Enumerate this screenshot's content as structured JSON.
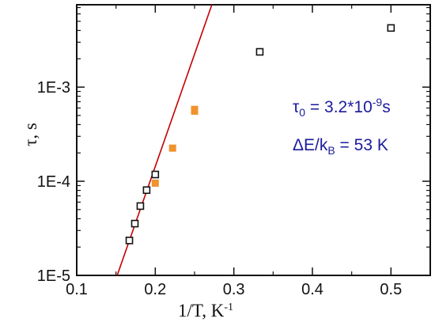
{
  "chart_data": {
    "type": "scatter",
    "title": "",
    "xlabel": {
      "base": "1/T, K",
      "superscript": "-1"
    },
    "ylabel": "τ, s",
    "xlim": [
      0.1,
      0.55
    ],
    "ylim": [
      1e-05,
      0.0075
    ],
    "y_scale": "log",
    "grid": false,
    "x_ticks": [
      {
        "value": 0.1,
        "label": "0.1"
      },
      {
        "value": 0.2,
        "label": "0.2"
      },
      {
        "value": 0.3,
        "label": "0.3"
      },
      {
        "value": 0.4,
        "label": "0.4"
      },
      {
        "value": 0.5,
        "label": "0.5"
      }
    ],
    "y_ticks": [
      {
        "value": 1e-05,
        "label": "1E-5"
      },
      {
        "value": 0.0001,
        "label": "1E-4"
      },
      {
        "value": 0.001,
        "label": "1E-3"
      }
    ],
    "series": [
      {
        "marker": "square-open",
        "color": "#111111",
        "points": [
          {
            "x": 0.167,
            "y": 2.35e-05
          },
          {
            "x": 0.174,
            "y": 3.55e-05
          },
          {
            "x": 0.181,
            "y": 5.45e-05
          },
          {
            "x": 0.189,
            "y": 8.05e-05
          },
          {
            "x": 0.2,
            "y": 0.000118
          },
          {
            "x": 0.333,
            "y": 0.00237
          },
          {
            "x": 0.5,
            "y": 0.00425
          }
        ]
      },
      {
        "marker": "square-filled",
        "color": "#f0922e",
        "points": [
          {
            "x": 0.2,
            "y": 9.55e-05
          },
          {
            "x": 0.222,
            "y": 0.000225
          },
          {
            "x": 0.25,
            "y": 0.000555
          },
          {
            "x": 0.25,
            "y": 0.00058
          }
        ]
      }
    ],
    "fit_line": {
      "type": "line",
      "color": "#c40000",
      "points": [
        {
          "x": 0.1515,
          "y": 1e-05
        },
        {
          "x": 0.272,
          "y": 0.0075
        }
      ]
    },
    "annotations": [
      {
        "symbol": "τ",
        "subscript": "0",
        "middle": " = 3.2*10",
        "superscript": "-9",
        "end": "s"
      },
      {
        "prefix": "ΔE/k",
        "subscript": "B",
        "suffix": " = 53 K"
      }
    ]
  }
}
